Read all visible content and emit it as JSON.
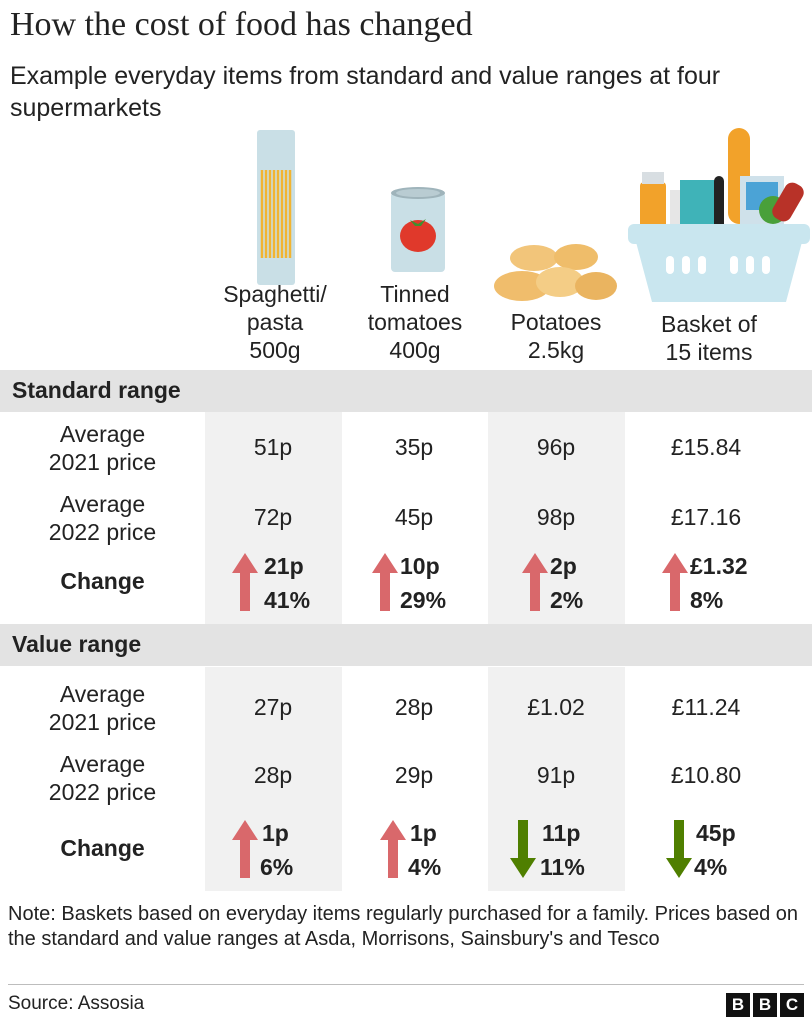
{
  "title": "How the cost of food has changed",
  "subtitle": "Example everyday items from standard and value ranges at four supermarkets",
  "items": [
    {
      "label_lines": [
        "Spaghetti/",
        "pasta",
        "500g"
      ],
      "icon": "spaghetti-icon"
    },
    {
      "label_lines": [
        "Tinned",
        "tomatoes",
        "400g"
      ],
      "icon": "tinned-tomatoes-icon"
    },
    {
      "label_lines": [
        "Potatoes",
        "2.5kg"
      ],
      "icon": "potatoes-icon"
    },
    {
      "label_lines": [
        "Basket of",
        "15 items"
      ],
      "icon": "shopping-basket-icon"
    }
  ],
  "row_labels": {
    "avg2021": [
      "Average",
      "2021 price"
    ],
    "avg2022": [
      "Average",
      "2022 price"
    ],
    "change": "Change"
  },
  "sections": [
    {
      "name": "Standard range",
      "avg2021": [
        "51p",
        "35p",
        "96p",
        "£15.84"
      ],
      "avg2022": [
        "72p",
        "45p",
        "98p",
        "£17.16"
      ],
      "change": [
        {
          "direction": "up",
          "amount": "21p",
          "percent": "41%"
        },
        {
          "direction": "up",
          "amount": "10p",
          "percent": "29%"
        },
        {
          "direction": "up",
          "amount": "2p",
          "percent": "2%"
        },
        {
          "direction": "up",
          "amount": "£1.32",
          "percent": "8%"
        }
      ]
    },
    {
      "name": "Value range",
      "avg2021": [
        "27p",
        "28p",
        "£1.02",
        "£11.24"
      ],
      "avg2022": [
        "28p",
        "29p",
        "91p",
        "£10.80"
      ],
      "change": [
        {
          "direction": "up",
          "amount": "1p",
          "percent": "6%"
        },
        {
          "direction": "up",
          "amount": "1p",
          "percent": "4%"
        },
        {
          "direction": "down",
          "amount": "11p",
          "percent": "11%"
        },
        {
          "direction": "down",
          "amount": "45p",
          "percent": "4%"
        }
      ]
    }
  ],
  "colors": {
    "up": "#d9686b",
    "down": "#4f7f00",
    "stripe": "#f1f1f1",
    "band": "#e3e3e3"
  },
  "note": "Note: Baskets based on everyday items regularly purchased for a family. Prices based on the standard and value ranges at Asda, Morrisons, Sainsbury's and Tesco",
  "source": "Source: Assosia",
  "logo_letters": [
    "B",
    "B",
    "C"
  ],
  "chart_data": {
    "type": "table",
    "title": "How the cost of food has changed",
    "subtitle": "Example everyday items from standard and value ranges at four supermarkets",
    "columns": [
      "Spaghetti/pasta 500g",
      "Tinned tomatoes 400g",
      "Potatoes 2.5kg",
      "Basket of 15 items"
    ],
    "groups": [
      {
        "name": "Standard range",
        "rows": {
          "Average 2021 price": [
            "51p",
            "35p",
            "96p",
            "£15.84"
          ],
          "Average 2022 price": [
            "72p",
            "45p",
            "98p",
            "£17.16"
          ],
          "Change": [
            "+21p / 41%",
            "+10p / 29%",
            "+2p / 2%",
            "+£1.32 / 8%"
          ]
        }
      },
      {
        "name": "Value range",
        "rows": {
          "Average 2021 price": [
            "27p",
            "28p",
            "£1.02",
            "£11.24"
          ],
          "Average 2022 price": [
            "28p",
            "29p",
            "91p",
            "£10.80"
          ],
          "Change": [
            "+1p / 6%",
            "+1p / 4%",
            "-11p / 11%",
            "-45p / 4%"
          ]
        }
      }
    ]
  }
}
